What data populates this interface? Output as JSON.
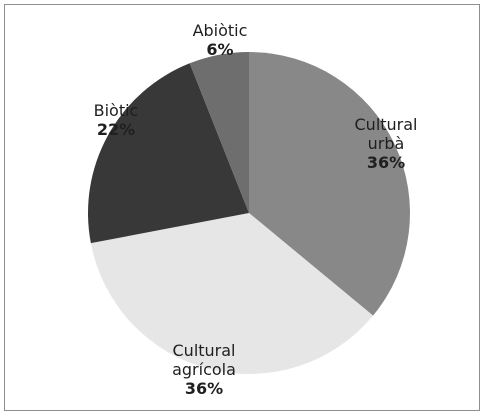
{
  "chart_data": {
    "type": "pie",
    "slices": [
      {
        "label_lines": [
          "Cultural",
          "urbà"
        ],
        "value_label": "36%",
        "value": 36,
        "color": "#888888"
      },
      {
        "label_lines": [
          "Cultural",
          "agrícola"
        ],
        "value_label": "36%",
        "value": 36,
        "color": "#e6e6e6"
      },
      {
        "label_lines": [
          "Biòtic"
        ],
        "value_label": "22%",
        "value": 22,
        "color": "#383838"
      },
      {
        "label_lines": [
          "Abiòtic"
        ],
        "value_label": "6%",
        "value": 6,
        "color": "#6e6e6e"
      }
    ],
    "legend": "none"
  }
}
